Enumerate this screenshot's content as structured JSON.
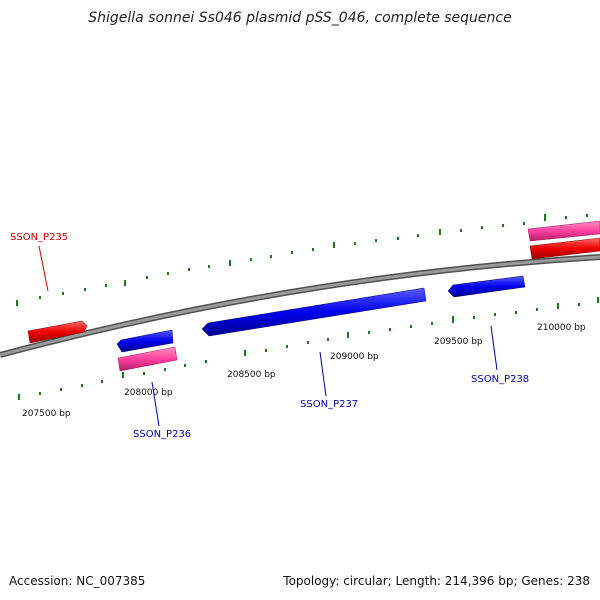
{
  "title": "Shigella sonnei Ss046 plasmid pSS_046, complete sequence",
  "footer": {
    "accession": "Accession: NC_007385",
    "summary": "Topology: circular; Length: 214,396 bp; Genes: 238"
  },
  "tick_labels": [
    "207500 bp",
    "208000 bp",
    "208500 bp",
    "209000 bp",
    "209500 bp",
    "210000 bp"
  ],
  "genes": [
    {
      "name": "SSON_P235",
      "color": "#cc0000"
    },
    {
      "name": "SSON_P236",
      "color": "#0000aa"
    },
    {
      "name": "SSON_P237",
      "color": "#0000aa"
    },
    {
      "name": "SSON_P238",
      "color": "#0000aa"
    }
  ],
  "colors": {
    "backbone": "#808080",
    "tick": "#1a7a1a",
    "forward_cds": "#ff0000",
    "reverse_cds": "#0000ff",
    "rna": "#ff3fa0"
  }
}
